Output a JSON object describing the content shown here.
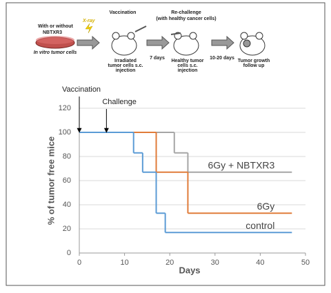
{
  "diagram": {
    "start_label": [
      "With or without",
      "NBTXR3"
    ],
    "xray_label": "X-ray",
    "dish_label": "In vitro tumor cells",
    "vaccination_title": "Vaccination",
    "vaccination_caption": [
      "Irradiated",
      "tumor cells s.c.",
      "injection"
    ],
    "rechallenge_title": [
      "Re-challenge",
      "(with healthy cancer cells)"
    ],
    "interval_1": "7 days",
    "rechallenge_caption": [
      "Healthy tumor",
      "cells s.c.",
      "injection"
    ],
    "interval_2": "10-20 days",
    "followup_caption": [
      "Tumor growth",
      "follow up"
    ]
  },
  "chart_data": {
    "type": "line",
    "step": "post",
    "xlabel": "Days",
    "ylabel": "% of tumor free mice",
    "xlim": [
      0,
      50
    ],
    "xticks": [
      0,
      10,
      20,
      30,
      40,
      50
    ],
    "ylim": [
      0,
      120
    ],
    "yticks": [
      0,
      20,
      40,
      60,
      80,
      100,
      120
    ],
    "grid": true,
    "annotations": [
      {
        "text": "Vaccination",
        "x": 0,
        "y": 100
      },
      {
        "text": "Challenge",
        "x": 6,
        "y": 100
      }
    ],
    "series": [
      {
        "name": "6Gy + NBTXR3",
        "color": "#a5a5a5",
        "x": [
          0,
          21,
          24,
          47
        ],
        "values": [
          100,
          83,
          67,
          67
        ]
      },
      {
        "name": "6Gy",
        "color": "#e07b39",
        "x": [
          0,
          17,
          24,
          47
        ],
        "values": [
          100,
          67,
          33,
          33
        ]
      },
      {
        "name": "control",
        "color": "#5b9bd5",
        "x": [
          0,
          12,
          14,
          17,
          19,
          47
        ],
        "values": [
          100,
          83,
          67,
          33,
          17,
          17
        ]
      }
    ]
  }
}
